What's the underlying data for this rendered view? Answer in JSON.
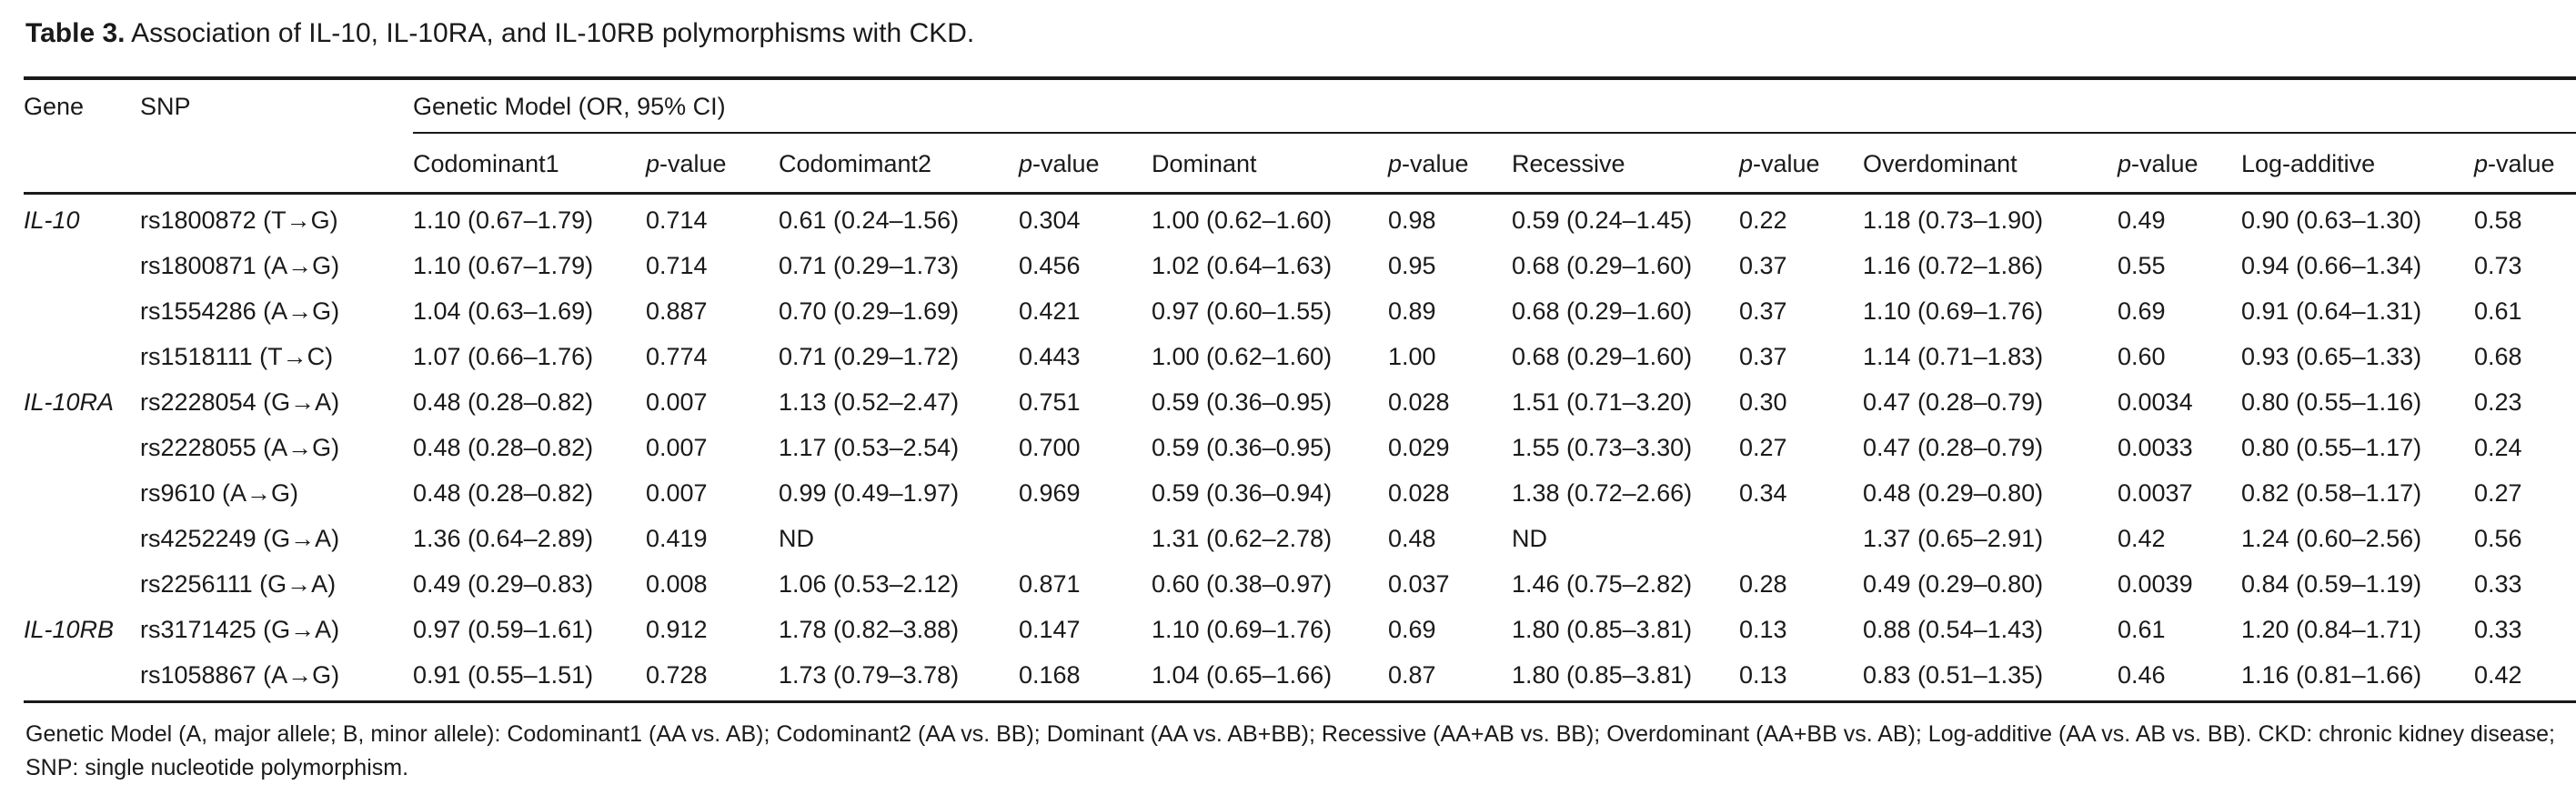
{
  "title": {
    "label": "Table 3.",
    "text": "Association of IL-10, IL-10RA, and IL-10RB polymorphisms with CKD."
  },
  "table": {
    "col_gene": "Gene",
    "col_snp": "SNP",
    "spanner": "Genetic Model (OR, 95% CI)",
    "model_columns": [
      "Codominant1",
      "p-value",
      "Codomimant2",
      "p-value",
      "Dominant",
      "p-value",
      "Recessive",
      "p-value",
      "Overdominant",
      "p-value",
      "Log-additive",
      "p-value"
    ],
    "rows": [
      {
        "gene": "IL-10",
        "snp": "rs1800872 (T→G)",
        "values": [
          "1.10 (0.67–1.79)",
          "0.714",
          "0.61 (0.24–1.56)",
          "0.304",
          "1.00 (0.62–1.60)",
          "0.98",
          "0.59 (0.24–1.45)",
          "0.22",
          "1.18 (0.73–1.90)",
          "0.49",
          "0.90 (0.63–1.30)",
          "0.58"
        ]
      },
      {
        "gene": "",
        "snp": "rs1800871 (A→G)",
        "values": [
          "1.10 (0.67–1.79)",
          "0.714",
          "0.71 (0.29–1.73)",
          "0.456",
          "1.02 (0.64–1.63)",
          "0.95",
          "0.68 (0.29–1.60)",
          "0.37",
          "1.16 (0.72–1.86)",
          "0.55",
          "0.94 (0.66–1.34)",
          "0.73"
        ]
      },
      {
        "gene": "",
        "snp": "rs1554286 (A→G)",
        "values": [
          "1.04 (0.63–1.69)",
          "0.887",
          "0.70 (0.29–1.69)",
          "0.421",
          "0.97 (0.60–1.55)",
          "0.89",
          "0.68 (0.29–1.60)",
          "0.37",
          "1.10 (0.69–1.76)",
          "0.69",
          "0.91 (0.64–1.31)",
          "0.61"
        ]
      },
      {
        "gene": "",
        "snp": "rs1518111 (T→C)",
        "values": [
          "1.07 (0.66–1.76)",
          "0.774",
          "0.71 (0.29–1.72)",
          "0.443",
          "1.00 (0.62–1.60)",
          "1.00",
          "0.68 (0.29–1.60)",
          "0.37",
          "1.14 (0.71–1.83)",
          "0.60",
          "0.93 (0.65–1.33)",
          "0.68"
        ]
      },
      {
        "gene": "IL-10RA",
        "snp": "rs2228054 (G→A)",
        "values": [
          "0.48 (0.28–0.82)",
          "0.007",
          "1.13 (0.52–2.47)",
          "0.751",
          "0.59 (0.36–0.95)",
          "0.028",
          "1.51 (0.71–3.20)",
          "0.30",
          "0.47 (0.28–0.79)",
          "0.0034",
          "0.80 (0.55–1.16)",
          "0.23"
        ]
      },
      {
        "gene": "",
        "snp": "rs2228055 (A→G)",
        "values": [
          "0.48 (0.28–0.82)",
          "0.007",
          "1.17 (0.53–2.54)",
          "0.700",
          "0.59 (0.36–0.95)",
          "0.029",
          "1.55 (0.73–3.30)",
          "0.27",
          "0.47 (0.28–0.79)",
          "0.0033",
          "0.80 (0.55–1.17)",
          "0.24"
        ]
      },
      {
        "gene": "",
        "snp": "rs9610 (A→G)",
        "values": [
          "0.48 (0.28–0.82)",
          "0.007",
          "0.99 (0.49–1.97)",
          "0.969",
          "0.59 (0.36–0.94)",
          "0.028",
          "1.38 (0.72–2.66)",
          "0.34",
          "0.48 (0.29–0.80)",
          "0.0037",
          "0.82 (0.58–1.17)",
          "0.27"
        ]
      },
      {
        "gene": "",
        "snp": "rs4252249 (G→A)",
        "values": [
          "1.36 (0.64–2.89)",
          "0.419",
          "ND",
          "",
          "1.31 (0.62–2.78)",
          "0.48",
          "ND",
          "",
          "1.37 (0.65–2.91)",
          "0.42",
          "1.24 (0.60–2.56)",
          "0.56"
        ]
      },
      {
        "gene": "",
        "snp": "rs2256111 (G→A)",
        "values": [
          "0.49 (0.29–0.83)",
          "0.008",
          "1.06 (0.53–2.12)",
          "0.871",
          "0.60 (0.38–0.97)",
          "0.037",
          "1.46 (0.75–2.82)",
          "0.28",
          "0.49 (0.29–0.80)",
          "0.0039",
          "0.84 (0.59–1.19)",
          "0.33"
        ]
      },
      {
        "gene": "IL-10RB",
        "snp": "rs3171425 (G→A)",
        "values": [
          "0.97 (0.59–1.61)",
          "0.912",
          "1.78 (0.82–3.88)",
          "0.147",
          "1.10 (0.69–1.76)",
          "0.69",
          "1.80 (0.85–3.81)",
          "0.13",
          "0.88 (0.54–1.43)",
          "0.61",
          "1.20 (0.84–1.71)",
          "0.33"
        ]
      },
      {
        "gene": "",
        "snp": "rs1058867 (A→G)",
        "values": [
          "0.91 (0.55–1.51)",
          "0.728",
          "1.73 (0.79–3.78)",
          "0.168",
          "1.04 (0.65–1.66)",
          "0.87",
          "1.80 (0.85–3.81)",
          "0.13",
          "0.83 (0.51–1.35)",
          "0.46",
          "1.16 (0.81–1.66)",
          "0.42"
        ]
      }
    ]
  },
  "footnote": "Genetic Model (A, major allele; B, minor allele): Codominant1 (AA vs. AB); Codominant2 (AA vs. BB); Dominant (AA vs. AB+BB); Recessive (AA+AB vs. BB); Overdominant (AA+BB vs. AB); Log-additive (AA vs. AB vs. BB). CKD: chronic kidney disease; SNP: single nucleotide polymorphism.",
  "colors": {
    "text": "#1a1a1a",
    "rule": "#1a1a1a",
    "background": "#ffffff"
  }
}
